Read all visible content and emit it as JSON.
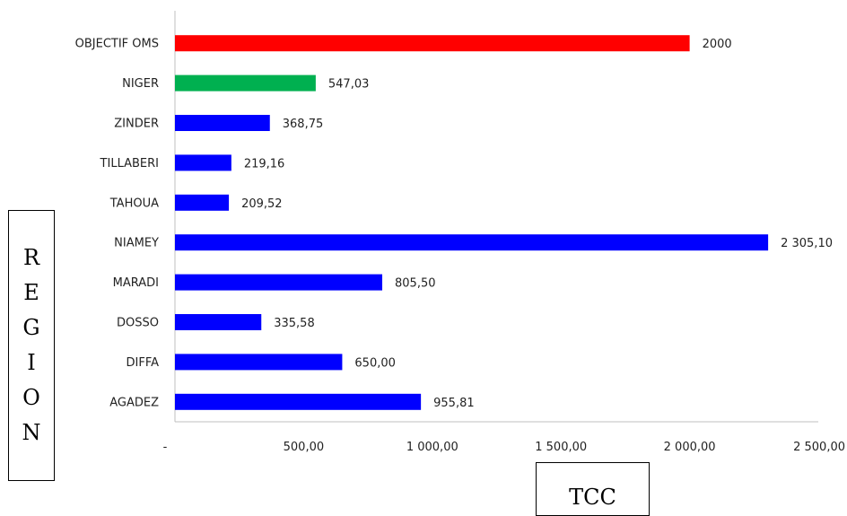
{
  "chart_data": {
    "type": "bar",
    "orientation": "horizontal",
    "categories": [
      "AGADEZ",
      "DIFFA",
      "DOSSO",
      "MARADI",
      "NIAMEY",
      "TAHOUA",
      "TILLABERI",
      "ZINDER",
      "NIGER",
      "OBJECTIF OMS"
    ],
    "values": [
      955.81,
      650.0,
      335.58,
      805.5,
      2305.1,
      209.52,
      219.16,
      368.75,
      547.03,
      2000
    ],
    "value_labels": [
      "955,81",
      "650,00",
      "335,58",
      "805,50",
      "2 305,10",
      "209,52",
      "219,16",
      "368,75",
      "547,03",
      "2000"
    ],
    "bar_colors": [
      "#0000ff",
      "#0000ff",
      "#0000ff",
      "#0000ff",
      "#0000ff",
      "#0000ff",
      "#0000ff",
      "#0000ff",
      "#00b050",
      "#ff0000"
    ],
    "xlim": [
      0,
      2500
    ],
    "x_ticks": [
      0,
      500,
      1000,
      1500,
      2000,
      2500
    ],
    "x_tick_labels": [
      "-",
      "500,00",
      "1 000,00",
      "1 500,00",
      "2 000,00",
      "2 500,00"
    ],
    "xlabel": "TCC",
    "ylabel": "REGION",
    "ylabel_letters": [
      "R",
      "E",
      "G",
      "I",
      "O",
      "N"
    ],
    "grid": false,
    "legend": "none"
  }
}
